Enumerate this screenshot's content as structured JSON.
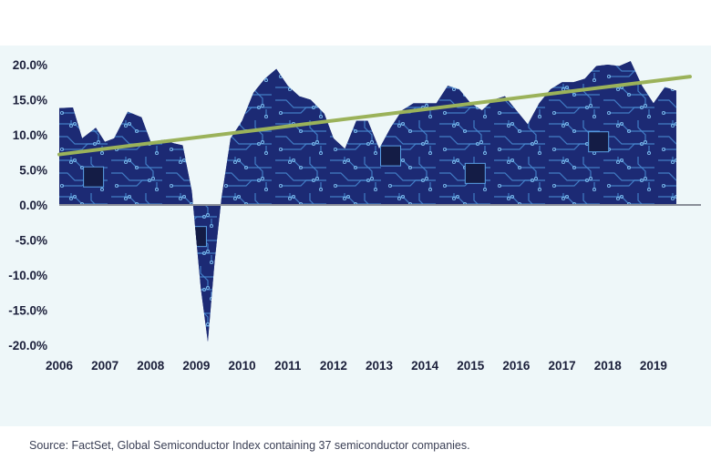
{
  "chart_data": {
    "type": "area",
    "title": "",
    "xlabel": "",
    "ylabel": "",
    "ylim": [
      -20,
      20
    ],
    "xlim": [
      2006,
      2020
    ],
    "y_ticks": [
      20,
      15,
      10,
      5,
      0,
      -5,
      -10,
      -15,
      -20
    ],
    "y_tick_labels": [
      "20.0%",
      "15.0%",
      "10.0%",
      "5.0%",
      "0.0%",
      "-5.0%",
      "-10.0%",
      "-15.0%",
      "-20.0%"
    ],
    "x_ticks": [
      2006,
      2007,
      2008,
      2009,
      2010,
      2011,
      2012,
      2013,
      2014,
      2015,
      2016,
      2017,
      2018,
      2019
    ],
    "x_tick_labels": [
      "2006",
      "2007",
      "2008",
      "2009",
      "2010",
      "2011",
      "2012",
      "2013",
      "2014",
      "2015",
      "2016",
      "2017",
      "2018",
      "2019"
    ],
    "grid": false,
    "series": [
      {
        "type": "area",
        "color": "#1f2e7a",
        "x": [
          2006.0,
          2006.3,
          2006.5,
          2006.8,
          2007.0,
          2007.2,
          2007.5,
          2007.8,
          2008.0,
          2008.3,
          2008.5,
          2008.7,
          2008.9,
          2009.0,
          2009.1,
          2009.25,
          2009.4,
          2009.55,
          2009.75,
          2010.0,
          2010.25,
          2010.5,
          2010.75,
          2011.0,
          2011.25,
          2011.5,
          2011.8,
          2012.0,
          2012.25,
          2012.5,
          2012.75,
          2013.0,
          2013.25,
          2013.5,
          2013.75,
          2014.0,
          2014.25,
          2014.5,
          2014.75,
          2015.0,
          2015.25,
          2015.5,
          2015.75,
          2016.0,
          2016.25,
          2016.5,
          2016.75,
          2017.0,
          2017.25,
          2017.5,
          2017.75,
          2018.0,
          2018.25,
          2018.5,
          2018.75,
          2019.0,
          2019.25,
          2019.5
        ],
        "y": [
          13.8,
          13.9,
          9.5,
          11.0,
          9.0,
          9.5,
          13.3,
          12.5,
          9.0,
          9.3,
          8.8,
          8.5,
          2.0,
          -5.0,
          -12.0,
          -19.5,
          -8.0,
          1.0,
          9.5,
          12.0,
          16.0,
          18.0,
          19.4,
          17.0,
          15.5,
          15.0,
          13.0,
          9.5,
          8.0,
          12.0,
          12.0,
          8.0,
          11.0,
          13.5,
          14.5,
          14.5,
          14.5,
          17.0,
          16.5,
          14.5,
          13.5,
          15.0,
          15.5,
          13.5,
          11.5,
          14.5,
          16.5,
          17.5,
          17.5,
          18.0,
          19.8,
          20.0,
          19.8,
          20.5,
          17.0,
          14.5,
          16.8,
          16.3
        ]
      },
      {
        "type": "line",
        "color": "#9bb25a",
        "x": [
          2006.0,
          2019.8
        ],
        "y": [
          7.2,
          18.3
        ]
      }
    ],
    "source": "Source: FactSet, Global Semiconductor Index containing 37 semiconductor companies."
  }
}
